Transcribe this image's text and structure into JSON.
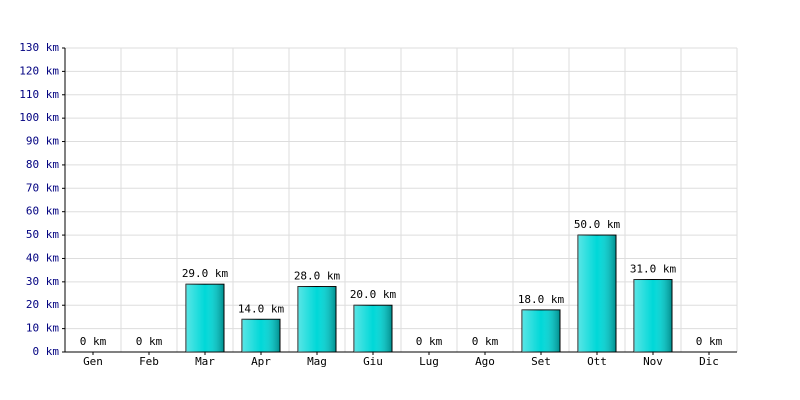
{
  "chart_data": {
    "type": "bar",
    "categories": [
      "Gen",
      "Feb",
      "Mar",
      "Apr",
      "Mag",
      "Giu",
      "Lug",
      "Ago",
      "Set",
      "Ott",
      "Nov",
      "Dic"
    ],
    "values": [
      0,
      0,
      29,
      14,
      28,
      20,
      0,
      0,
      18,
      50,
      31,
      0
    ],
    "value_labels": [
      "0 km",
      "0 km",
      "29.0 km",
      "14.0 km",
      "28.0 km",
      "20.0 km",
      "0 km",
      "0 km",
      "18.0 km",
      "50.0 km",
      "31.0 km",
      "0 km"
    ],
    "color": "#00d8d8",
    "ylim": [
      0,
      130
    ],
    "yticks": [
      {
        "value": 0,
        "label": "0 km"
      },
      {
        "value": 10,
        "label": "10 km"
      },
      {
        "value": 20,
        "label": "20 km"
      },
      {
        "value": 30,
        "label": "30 km"
      },
      {
        "value": 40,
        "label": "40 km"
      },
      {
        "value": 50,
        "label": "50 km"
      },
      {
        "value": 60,
        "label": "60 km"
      },
      {
        "value": 70,
        "label": "70 km"
      },
      {
        "value": 80,
        "label": "80 km"
      },
      {
        "value": 90,
        "label": "90 km"
      },
      {
        "value": 100,
        "label": "100 km"
      },
      {
        "value": 110,
        "label": "110 km"
      },
      {
        "value": 120,
        "label": "120 km"
      },
      {
        "value": 130,
        "label": "130 km"
      }
    ],
    "grid": true
  }
}
